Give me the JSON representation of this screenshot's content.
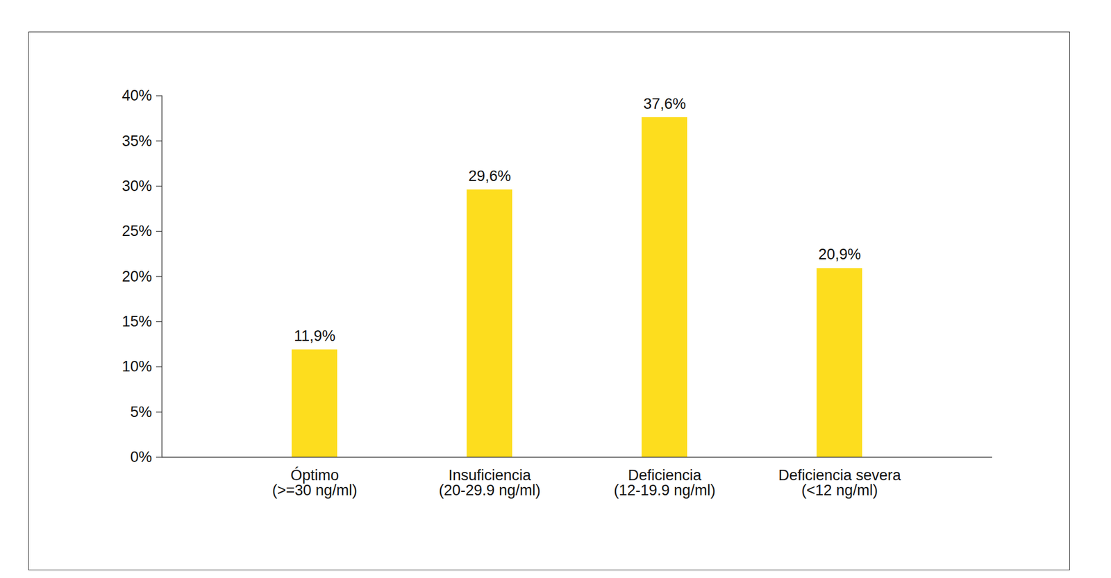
{
  "chart_data": {
    "type": "bar",
    "categories": [
      "Óptimo\n(>=30 ng/ml)",
      "Insuficiencia\n(20-29.9 ng/ml)",
      "Deficiencia\n(12-19.9 ng/ml)",
      "Deficiencia severa\n(<12 ng/ml)"
    ],
    "values": [
      11.9,
      29.6,
      37.6,
      20.9
    ],
    "value_labels": [
      "11,9%",
      "29,6%",
      "37,6%",
      "20,9%"
    ],
    "color": "#fddd1e",
    "ylim": [
      0,
      40
    ],
    "yticks": [
      {
        "value": 0,
        "label": "0%"
      },
      {
        "value": 5,
        "label": "5%"
      },
      {
        "value": 10,
        "label": "10%"
      },
      {
        "value": 15,
        "label": "15%"
      },
      {
        "value": 20,
        "label": "20%"
      },
      {
        "value": 25,
        "label": "25%"
      },
      {
        "value": 30,
        "label": "30%"
      },
      {
        "value": 35,
        "label": "35%"
      },
      {
        "value": 40,
        "label": "40%"
      }
    ],
    "grid": false,
    "data_labels": true
  }
}
